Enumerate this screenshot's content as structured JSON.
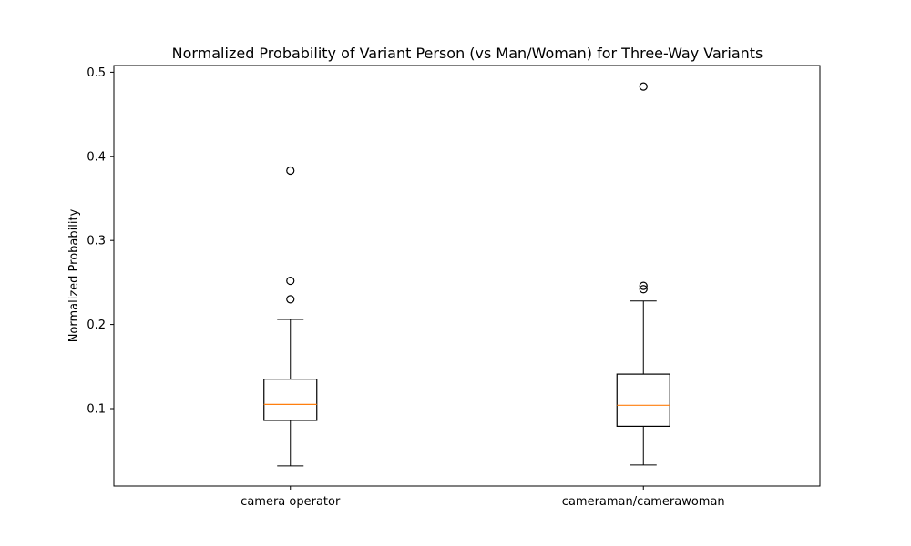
{
  "chart_data": {
    "type": "box",
    "title": "Normalized Probability of Variant Person (vs Man/Woman) for Three-Way Variants",
    "xlabel": "",
    "ylabel": "Normalized Probability",
    "ylim": [
      0.008,
      0.508
    ],
    "yticks": [
      0.1,
      0.2,
      0.3,
      0.4,
      0.5
    ],
    "ytick_labels": [
      "0.1",
      "0.2",
      "0.3",
      "0.4",
      "0.5"
    ],
    "grid": false,
    "categories": [
      "camera operator",
      "cameraman/camerawoman"
    ],
    "boxes": [
      {
        "category": "camera operator",
        "whisker_low": 0.032,
        "q1": 0.086,
        "median": 0.105,
        "q3": 0.135,
        "whisker_high": 0.206,
        "outliers": [
          0.23,
          0.252,
          0.383
        ]
      },
      {
        "category": "cameraman/camerawoman",
        "whisker_low": 0.033,
        "q1": 0.079,
        "median": 0.104,
        "q3": 0.141,
        "whisker_high": 0.228,
        "outliers": [
          0.242,
          0.246,
          0.483
        ]
      }
    ],
    "colors": {
      "box": "#000000",
      "median": "#ff7f0e",
      "outlier": "#000000"
    }
  }
}
